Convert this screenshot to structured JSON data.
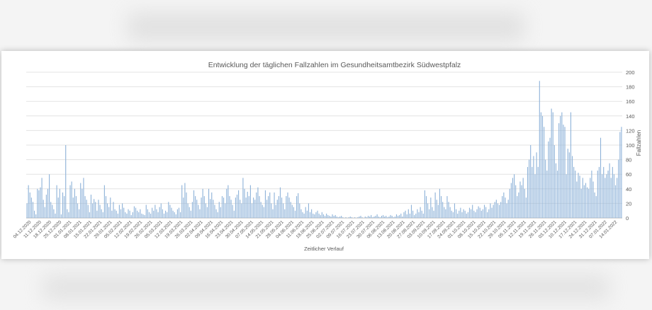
{
  "chart_data": {
    "type": "bar",
    "title": "Entwicklung der täglichen Fallzahlen im Gesundheitsamtbezirk Südwestpfalz",
    "xlabel": "Zeitlicher Verlauf",
    "ylabel": "Fallzahlen",
    "ylim": [
      0,
      200
    ],
    "yticks": [
      0,
      20,
      40,
      60,
      80,
      100,
      120,
      140,
      160,
      180,
      200
    ],
    "y_axis_side": "right",
    "grid": true,
    "bar_color": "#8fb3d9",
    "start_date": "04.12.2020",
    "date_labels": [
      "04.12.2020",
      "11.12.2020",
      "18.12.2020",
      "25.12.2020",
      "01.01.2021",
      "08.01.2021",
      "15.01.2021",
      "22.01.2021",
      "29.01.2021",
      "05.02.2021",
      "12.02.2021",
      "19.02.2021",
      "26.02.2021",
      "05.03.2021",
      "12.03.2021",
      "19.03.2021",
      "26.03.2021",
      "02.04.2021",
      "09.04.2021",
      "16.04.2021",
      "23.04.2021",
      "30.04.2021",
      "07.05.2021",
      "14.05.2021",
      "21.05.2021",
      "28.05.2021",
      "04.06.2021",
      "11.06.2021",
      "18.06.2021",
      "25.06.2021",
      "02.07.2021",
      "09.07.2021",
      "16.07.2021",
      "23.07.2021",
      "30.07.2021",
      "06.08.2021",
      "13.08.2021",
      "20.08.2021",
      "27.08.2021",
      "03.09.2021",
      "10.09.2021",
      "17.09.2021",
      "24.09.2021",
      "01.10.2021",
      "08.10.2021",
      "15.10.2021",
      "22.10.2021",
      "29.10.2021",
      "05.11.2021",
      "12.11.2021",
      "19.11.2021",
      "26.11.2021",
      "03.12.2021",
      "10.12.2021",
      "17.12.2021",
      "24.12.2021",
      "31.12.2021",
      "07.01.2022",
      "14.01.2022"
    ],
    "values": [
      20,
      45,
      35,
      28,
      22,
      10,
      5,
      40,
      38,
      42,
      55,
      25,
      15,
      32,
      40,
      60,
      22,
      18,
      12,
      6,
      45,
      28,
      40,
      5,
      35,
      30,
      100,
      12,
      8,
      45,
      50,
      28,
      40,
      30,
      20,
      12,
      48,
      40,
      55,
      30,
      25,
      18,
      8,
      32,
      20,
      26,
      22,
      10,
      25,
      18,
      12,
      8,
      45,
      30,
      20,
      15,
      28,
      10,
      22,
      12,
      10,
      6,
      18,
      12,
      20,
      14,
      8,
      6,
      12,
      10,
      4,
      8,
      16,
      14,
      10,
      8,
      12,
      6,
      5,
      4,
      18,
      12,
      8,
      6,
      14,
      10,
      18,
      12,
      8,
      15,
      20,
      12,
      6,
      10,
      8,
      22,
      18,
      14,
      10,
      8,
      5,
      12,
      14,
      8,
      45,
      28,
      48,
      35,
      20,
      15,
      10,
      22,
      38,
      30,
      25,
      18,
      12,
      28,
      40,
      30,
      20,
      15,
      40,
      26,
      35,
      25,
      18,
      12,
      8,
      22,
      15,
      30,
      28,
      20,
      40,
      45,
      30,
      25,
      18,
      10,
      28,
      32,
      38,
      25,
      20,
      55,
      40,
      28,
      36,
      30,
      45,
      20,
      28,
      25,
      35,
      42,
      30,
      22,
      18,
      15,
      38,
      25,
      30,
      35,
      20,
      12,
      35,
      18,
      25,
      30,
      42,
      28,
      20,
      12,
      30,
      35,
      28,
      22,
      18,
      15,
      10,
      30,
      34,
      20,
      12,
      8,
      6,
      15,
      10,
      20,
      8,
      12,
      6,
      5,
      8,
      10,
      6,
      4,
      8,
      5,
      3,
      6,
      4,
      3,
      2,
      5,
      3,
      4,
      2,
      1,
      2,
      3,
      1,
      0,
      1,
      0,
      1,
      2,
      1,
      0,
      1,
      0,
      1,
      2,
      3,
      1,
      0,
      2,
      1,
      3,
      2,
      4,
      1,
      2,
      3,
      5,
      2,
      1,
      3,
      4,
      2,
      3,
      1,
      2,
      4,
      3,
      1,
      2,
      5,
      3,
      4,
      6,
      2,
      8,
      10,
      5,
      12,
      6,
      18,
      10,
      4,
      6,
      12,
      8,
      15,
      10,
      6,
      38,
      30,
      20,
      12,
      28,
      15,
      10,
      35,
      25,
      18,
      40,
      30,
      22,
      15,
      12,
      30,
      22,
      15,
      10,
      8,
      20,
      12,
      6,
      10,
      14,
      8,
      12,
      10,
      6,
      8,
      14,
      12,
      18,
      10,
      8,
      12,
      16,
      14,
      10,
      12,
      18,
      15,
      8,
      12,
      20,
      14,
      18,
      22,
      25,
      20,
      18,
      22,
      30,
      35,
      28,
      20,
      25,
      40,
      48,
      55,
      60,
      45,
      30,
      35,
      50,
      45,
      55,
      40,
      28,
      70,
      80,
      100,
      70,
      85,
      60,
      90,
      70,
      188,
      145,
      140,
      125,
      80,
      65,
      105,
      110,
      150,
      145,
      100,
      75,
      65,
      130,
      140,
      145,
      128,
      125,
      60,
      95,
      90,
      145,
      85,
      70,
      65,
      50,
      62,
      58,
      40,
      55,
      45,
      48,
      42,
      40,
      55,
      65,
      50,
      35,
      30,
      65,
      70,
      110,
      60,
      70,
      55,
      60,
      65,
      75,
      55,
      70,
      60,
      45,
      55,
      80,
      118,
      125
    ]
  }
}
